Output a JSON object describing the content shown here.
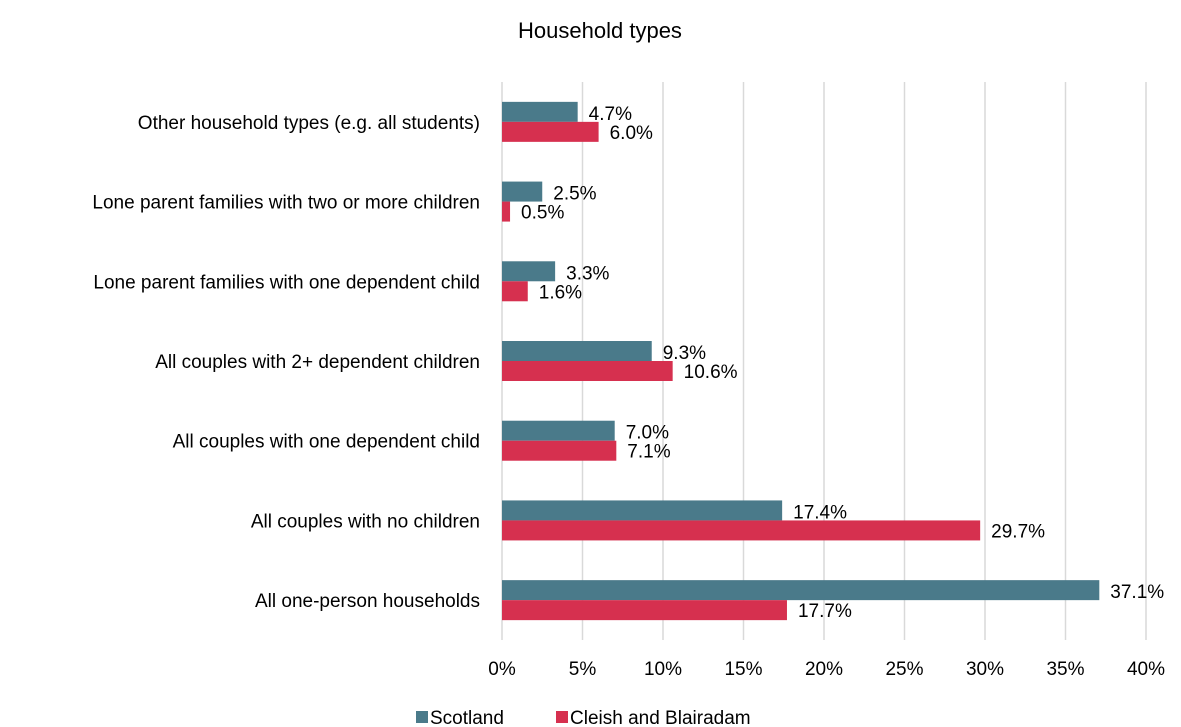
{
  "chart_data": {
    "type": "bar",
    "orientation": "horizontal",
    "title": "Household types",
    "categories": [
      "Other household types (e.g. all students)",
      "Lone parent families with two or more children",
      "Lone parent families with one dependent child",
      "All couples with 2+ dependent children",
      "All couples with one dependent child",
      "All couples with no children",
      "All one-person households"
    ],
    "series": [
      {
        "name": "Scotland",
        "color": "#4a7a8a",
        "values": [
          4.7,
          2.5,
          3.3,
          9.3,
          7.0,
          17.4,
          37.1
        ],
        "labels": [
          "4.7%",
          "2.5%",
          "3.3%",
          "9.3%",
          "7.0%",
          "17.4%",
          "37.1%"
        ]
      },
      {
        "name": "Cleish and Blairadam",
        "color": "#d6304f",
        "values": [
          6.0,
          0.5,
          1.6,
          10.6,
          7.1,
          29.7,
          17.7
        ],
        "labels": [
          "6.0%",
          "0.5%",
          "1.6%",
          "10.6%",
          "7.1%",
          "29.7%",
          "17.7%"
        ]
      }
    ],
    "xlim": [
      0,
      40
    ],
    "xticks": [
      "0%",
      "5%",
      "10%",
      "15%",
      "20%",
      "25%",
      "30%",
      "35%",
      "40%"
    ],
    "grid": "vertical",
    "legend": "bottom"
  }
}
